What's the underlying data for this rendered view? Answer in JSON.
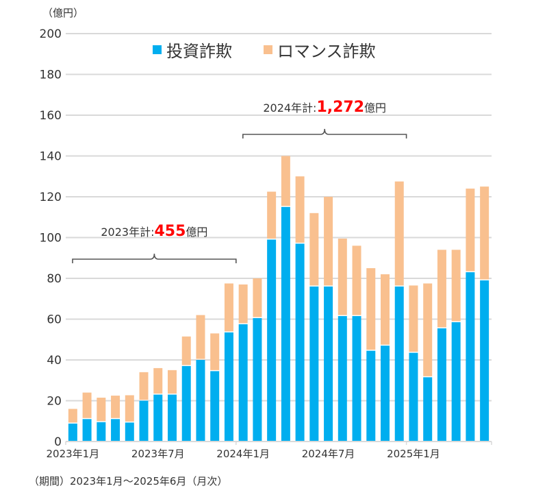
{
  "chart_data": {
    "type": "bar",
    "stacked": true,
    "unit_label": "（億円）",
    "ylim": [
      0,
      200
    ],
    "yticks": [
      0,
      20,
      40,
      60,
      80,
      100,
      120,
      140,
      160,
      180,
      200
    ],
    "grid": true,
    "legend_position": "top-center",
    "x_tick_labels": [
      {
        "index": 0,
        "label": "2023年1月"
      },
      {
        "index": 6,
        "label": "2023年7月"
      },
      {
        "index": 12,
        "label": "2024年1月"
      },
      {
        "index": 18,
        "label": "2024年7月"
      },
      {
        "index": 24,
        "label": "2025年1月"
      }
    ],
    "categories": [
      "2023-01",
      "2023-02",
      "2023-03",
      "2023-04",
      "2023-05",
      "2023-06",
      "2023-07",
      "2023-08",
      "2023-09",
      "2023-10",
      "2023-11",
      "2023-12",
      "2024-01",
      "2024-02",
      "2024-03",
      "2024-04",
      "2024-05",
      "2024-06",
      "2024-07",
      "2024-08",
      "2024-09",
      "2024-10",
      "2024-11",
      "2024-12",
      "2025-01",
      "2025-02",
      "2025-03",
      "2025-04",
      "2025-05",
      "2025-06"
    ],
    "series": [
      {
        "name": "投資詐欺",
        "color": "#00aeef",
        "values": [
          8.8,
          11,
          9.5,
          11,
          9.3,
          20,
          23,
          23,
          37,
          40,
          34.5,
          53.5,
          57.5,
          60.5,
          99,
          115,
          97,
          76,
          76,
          61.5,
          61.5,
          44.5,
          47,
          76,
          43.5,
          31.5,
          55.5,
          58.5,
          83,
          79
        ]
      },
      {
        "name": "ロマンス詐欺",
        "color": "#f9c08f",
        "values": [
          7.2,
          13,
          12,
          11.5,
          13.4,
          14,
          13,
          12,
          14.5,
          22,
          18.5,
          24,
          19.5,
          19.5,
          23.5,
          25,
          33,
          36,
          44,
          38,
          34.5,
          40.5,
          35,
          51.5,
          33,
          46,
          38.5,
          35.5,
          41,
          46
        ]
      }
    ],
    "annotations": [
      {
        "prefix": "2023年計:",
        "value": "455",
        "suffix": "億円",
        "from_index": 0,
        "to_index": 11
      },
      {
        "prefix": "2024年計:",
        "value": "1,272",
        "suffix": "億円",
        "from_index": 12,
        "to_index": 23
      }
    ],
    "highlight_color": "#ff0000",
    "footnote": "（期間）2023年1月～2025年6月（月次）"
  }
}
